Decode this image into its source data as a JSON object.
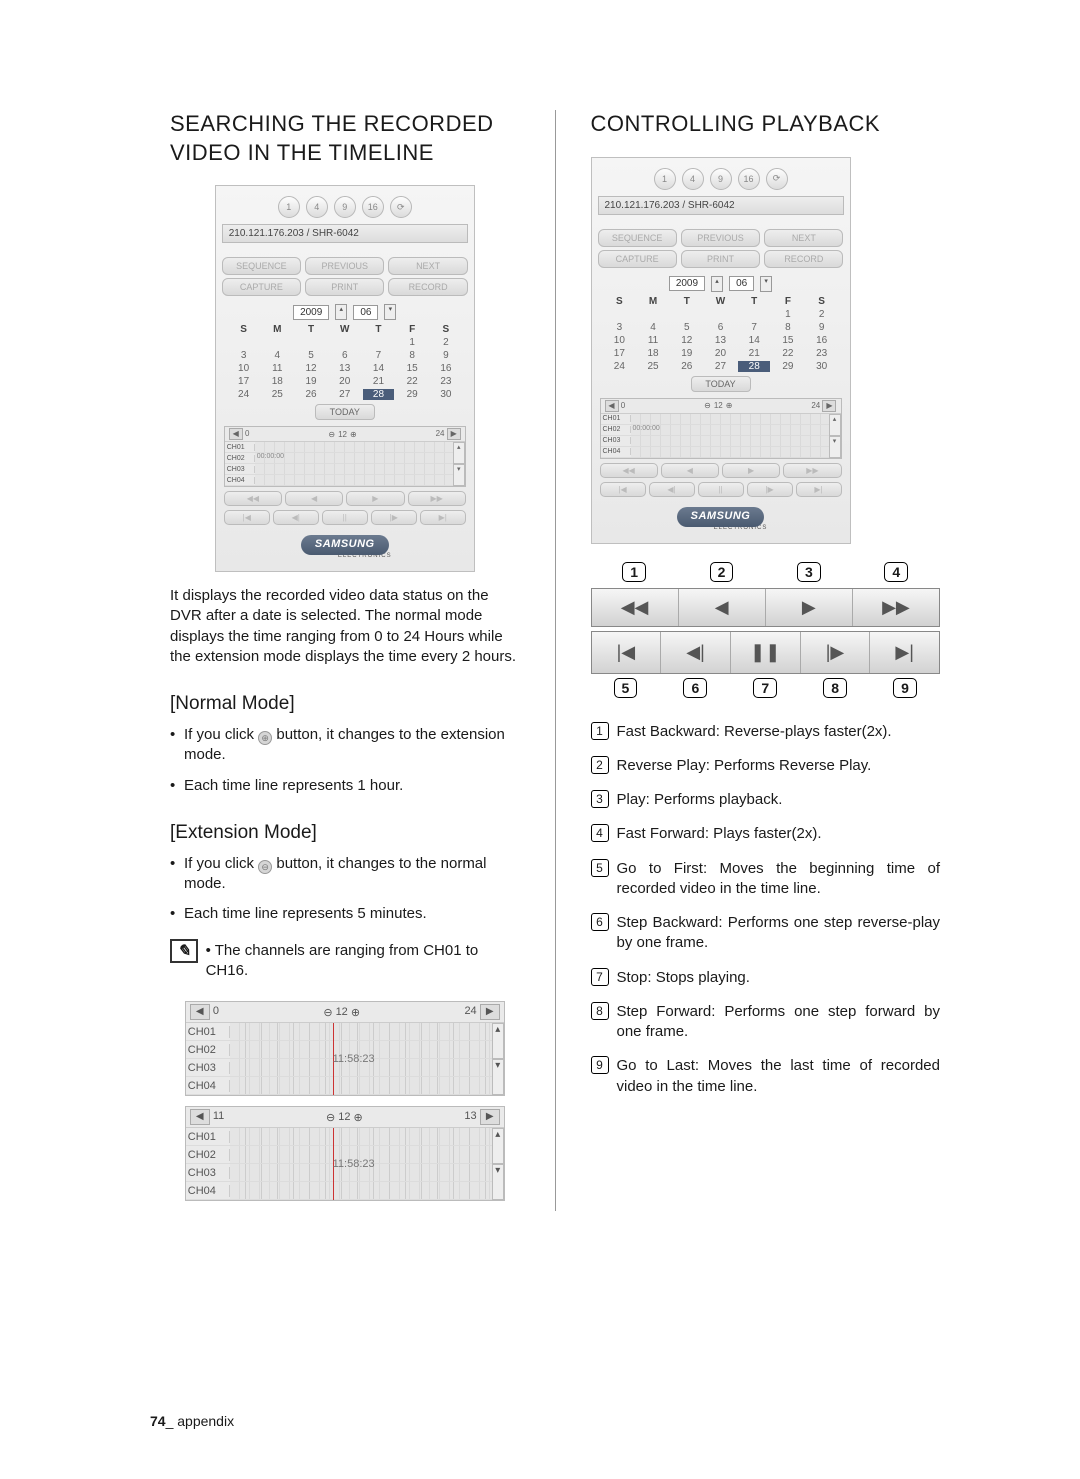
{
  "left": {
    "heading": "SEARCHING THE RECORDED VIDEO IN THE TIMELINE",
    "panel": {
      "topButtons": [
        "1",
        "4",
        "9",
        "16",
        "⟳"
      ],
      "address": "210.121.176.203 / SHR-6042",
      "row1": [
        "SEQUENCE",
        "PREVIOUS",
        "NEXT"
      ],
      "row2": [
        "CAPTURE",
        "PRINT",
        "RECORD"
      ],
      "year": "2009",
      "month": "06",
      "dow": [
        "S",
        "M",
        "T",
        "W",
        "T",
        "F",
        "S"
      ],
      "days": [
        "",
        "",
        "",
        "",
        "",
        "1",
        "2",
        "3",
        "4",
        "5",
        "6",
        "7",
        "8",
        "9",
        "10",
        "11",
        "12",
        "13",
        "14",
        "15",
        "16",
        "17",
        "18",
        "19",
        "20",
        "21",
        "22",
        "23",
        "24",
        "25",
        "26",
        "27",
        "28",
        "29",
        "30"
      ],
      "selectedDay": "28",
      "today": "TODAY",
      "tlStart": "0",
      "tlMid": "12",
      "tlEnd": "24",
      "channels": [
        "CH01",
        "CH02",
        "CH03",
        "CH04"
      ],
      "time": "00:00:00",
      "ctrl1": [
        "◀◀",
        "◀",
        "▶",
        "▶▶"
      ],
      "ctrl2": [
        "|◀",
        "◀|",
        "||",
        "|▶",
        "▶|"
      ],
      "logo": "SAMSUNG",
      "logoSub": "ELECTRONICS"
    },
    "para1": "It displays the recorded video data status on the DVR after a date is selected. The normal mode displays the time ranging from 0 to 24 Hours while the extension mode displays the time every 2 hours.",
    "normalHead": "[Normal Mode]",
    "normalB1a": "If you click ",
    "normalB1b": " button, it changes to the extension mode.",
    "normalB2": "Each time line represents 1 hour.",
    "extHead": "[Extension Mode]",
    "extB1a": "If you click ",
    "extB1b": " button, it changes to the normal mode.",
    "extB2": "Each time line represents 5 minutes.",
    "note": "The channels are ranging from CH01 to CH16.",
    "wide1": {
      "start": "0",
      "mid": "12",
      "end": "24",
      "channels": [
        "CH01",
        "CH02",
        "CH03",
        "CH04"
      ],
      "time": "11:58:23"
    },
    "wide2": {
      "start": "11",
      "mid": "12",
      "end": "13",
      "channels": [
        "CH01",
        "CH02",
        "CH03",
        "CH04"
      ],
      "time": "11:58:23"
    }
  },
  "right": {
    "heading": "CONTROLLING PLAYBACK",
    "topLabels": [
      "1",
      "2",
      "3",
      "4"
    ],
    "topGlyphs": [
      "◀◀",
      "◀",
      "▶",
      "▶▶"
    ],
    "botGlyphs": [
      "|◀",
      "◀|",
      "❚❚",
      "|▶",
      "▶|"
    ],
    "botLabels": [
      "5",
      "6",
      "7",
      "8",
      "9"
    ],
    "list": [
      "Fast Backward: Reverse-plays faster(2x).",
      "Reverse Play: Performs Reverse Play.",
      "Play: Performs playback.",
      "Fast Forward: Plays faster(2x).",
      "Go to First: Moves the beginning time of recorded video in the time line.",
      "Step Backward: Performs one step reverse-play by one frame.",
      "Stop: Stops playing.",
      "Step Forward: Performs one step forward by one frame.",
      "Go to Last: Moves the last time of recorded video in the time line."
    ]
  },
  "footerPage": "74",
  "footerText": "_ appendix"
}
